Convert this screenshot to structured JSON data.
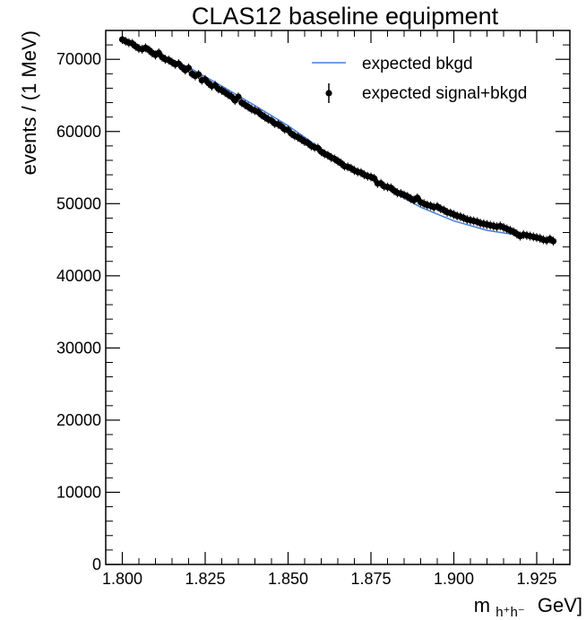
{
  "chart_data": {
    "type": "scatter",
    "title": "CLAS12 baseline equipment",
    "xlabel": {
      "main": "m",
      "sub": "h⁺h⁻",
      "unit": "GeV]"
    },
    "ylabel": "events / (1 MeV)",
    "xlim": [
      1.795,
      1.935
    ],
    "ylim": [
      0,
      74000
    ],
    "x_ticks": [
      1.8,
      1.825,
      1.85,
      1.875,
      1.9,
      1.925
    ],
    "x_tick_labels": [
      "1.800",
      "1.825",
      "1.850",
      "1.875",
      "1.900",
      "1.925"
    ],
    "y_ticks": [
      0,
      10000,
      20000,
      30000,
      40000,
      50000,
      60000,
      70000
    ],
    "y_tick_labels": [
      "0",
      "10000",
      "20000",
      "30000",
      "40000",
      "50000",
      "60000",
      "70000"
    ],
    "legend": {
      "placement": "top-right",
      "entries": [
        {
          "label": "expected bkgd",
          "style": "line",
          "color": "#4a7fd8"
        },
        {
          "label": "expected signal+bkgd",
          "style": "marker-errorbar",
          "color": "#000000"
        }
      ]
    },
    "series": [
      {
        "name": "expected bkgd",
        "style": "line",
        "color": "#4a7fd8",
        "x": [
          1.8,
          1.81,
          1.82,
          1.83,
          1.84,
          1.85,
          1.86,
          1.87,
          1.88,
          1.89,
          1.9,
          1.91,
          1.92,
          1.93
        ],
        "y": [
          72700,
          71000,
          68900,
          66300,
          63600,
          60800,
          57600,
          54700,
          52000,
          49500,
          47600,
          46300,
          45600,
          44900
        ]
      },
      {
        "name": "expected signal+bkgd",
        "style": "marker",
        "color": "#000000",
        "x": [
          1.8,
          1.801,
          1.802,
          1.803,
          1.804,
          1.805,
          1.806,
          1.807,
          1.808,
          1.809,
          1.81,
          1.811,
          1.812,
          1.813,
          1.814,
          1.815,
          1.816,
          1.817,
          1.818,
          1.819,
          1.82,
          1.821,
          1.822,
          1.823,
          1.824,
          1.825,
          1.826,
          1.827,
          1.828,
          1.829,
          1.83,
          1.831,
          1.832,
          1.833,
          1.834,
          1.835,
          1.836,
          1.837,
          1.838,
          1.839,
          1.84,
          1.841,
          1.842,
          1.843,
          1.844,
          1.845,
          1.846,
          1.847,
          1.848,
          1.849,
          1.85,
          1.851,
          1.852,
          1.853,
          1.854,
          1.855,
          1.856,
          1.857,
          1.858,
          1.859,
          1.86,
          1.861,
          1.862,
          1.863,
          1.864,
          1.865,
          1.866,
          1.867,
          1.868,
          1.869,
          1.87,
          1.871,
          1.872,
          1.873,
          1.874,
          1.875,
          1.876,
          1.877,
          1.878,
          1.879,
          1.88,
          1.881,
          1.882,
          1.883,
          1.884,
          1.885,
          1.886,
          1.887,
          1.888,
          1.889,
          1.89,
          1.891,
          1.892,
          1.893,
          1.894,
          1.895,
          1.896,
          1.897,
          1.898,
          1.899,
          1.9,
          1.901,
          1.902,
          1.903,
          1.904,
          1.905,
          1.906,
          1.907,
          1.908,
          1.909,
          1.91,
          1.911,
          1.912,
          1.913,
          1.914,
          1.915,
          1.916,
          1.917,
          1.918,
          1.919,
          1.92,
          1.921,
          1.922,
          1.923,
          1.924,
          1.925,
          1.926,
          1.927,
          1.928,
          1.929,
          1.93
        ],
        "y": [
          72750,
          72500,
          72300,
          72200,
          71800,
          71500,
          71400,
          71600,
          71300,
          70900,
          70600,
          70900,
          70300,
          70000,
          69900,
          69600,
          69300,
          69400,
          68900,
          68500,
          68800,
          68000,
          67700,
          67900,
          67100,
          67200,
          66700,
          66300,
          66400,
          65900,
          65700,
          65400,
          65100,
          64800,
          64300,
          64800,
          64000,
          63700,
          63400,
          63100,
          62900,
          62700,
          62300,
          62000,
          61700,
          61500,
          61100,
          61000,
          60700,
          60300,
          60200,
          59700,
          59400,
          59200,
          58900,
          58600,
          58400,
          58000,
          57800,
          57700,
          57200,
          56900,
          56700,
          56400,
          56200,
          55900,
          55600,
          55200,
          55100,
          54900,
          54600,
          54400,
          54300,
          54000,
          53800,
          53700,
          53500,
          52800,
          52800,
          52400,
          52300,
          52200,
          51800,
          51500,
          51400,
          51200,
          51000,
          50700,
          50500,
          50800,
          50200,
          50000,
          49800,
          49700,
          49500,
          49600,
          49300,
          49100,
          48800,
          48700,
          48500,
          48300,
          48200,
          48000,
          47800,
          47700,
          47600,
          47500,
          47300,
          47200,
          47100,
          47000,
          46900,
          46800,
          46900,
          46700,
          46500,
          46300,
          46100,
          45800,
          45500,
          45700,
          45600,
          45500,
          45400,
          45300,
          45200,
          45000,
          44900,
          45100,
          44800
        ]
      }
    ]
  }
}
